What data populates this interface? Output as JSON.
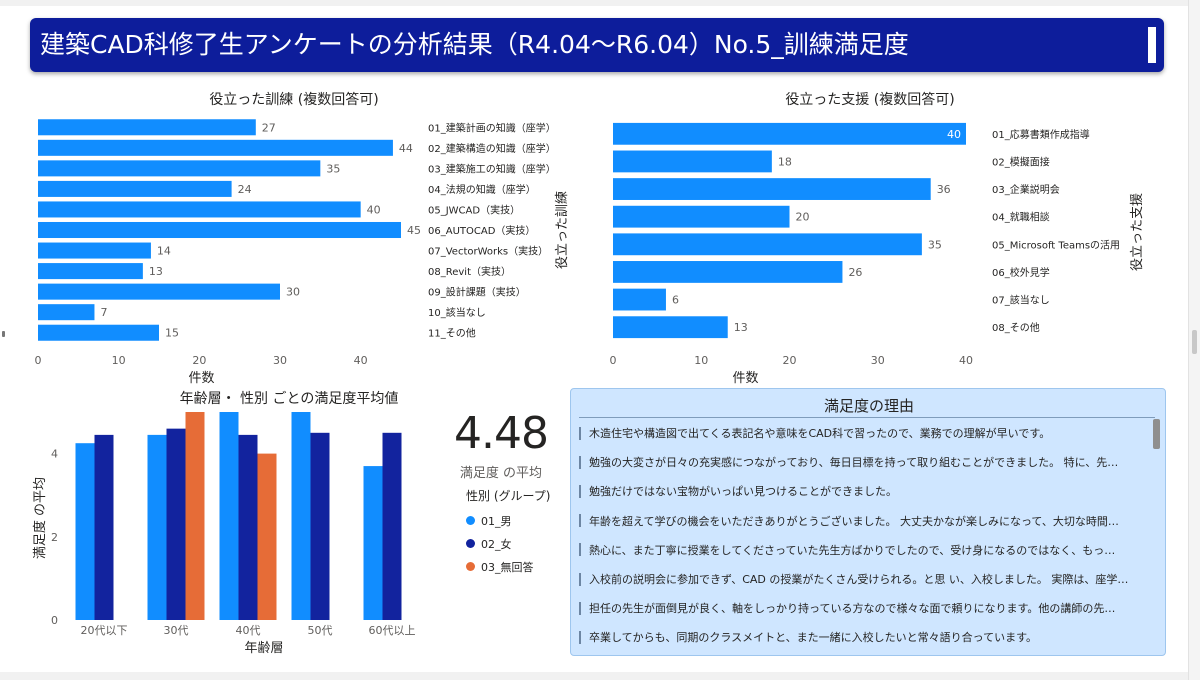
{
  "header": {
    "title": "建築CAD科修了生アンケートの分析結果（R4.04〜R6.04）No.5_訓練満足度"
  },
  "colors": {
    "header_bg": "#0d1d9b",
    "bar": "#118dff",
    "male": "#118dff",
    "female": "#12239e",
    "no_answer": "#e66c37",
    "panel_bg": "#cfe6ff"
  },
  "chart_data": [
    {
      "type": "bar",
      "orientation": "horizontal",
      "title": "役立った訓練 (複数回答可)",
      "xlabel": "件数",
      "ylabel": "役立った訓練",
      "xlim": [
        0,
        45
      ],
      "xticks": [
        0,
        10,
        20,
        30,
        40
      ],
      "grid": false,
      "categories": [
        "01_建築計画の知識（座学）",
        "02_建築構造の知識（座学）",
        "03_建築施工の知識（座学）",
        "04_法規の知識（座学）",
        "05_JWCAD（実技）",
        "06_AUTOCAD（実技）",
        "07_VectorWorks（実技）",
        "08_Revit（実技）",
        "09_設計課題（実技）",
        "10_該当なし",
        "11_その他"
      ],
      "values": [
        27,
        44,
        35,
        24,
        40,
        45,
        14,
        13,
        30,
        7,
        15
      ]
    },
    {
      "type": "bar",
      "orientation": "horizontal",
      "title": "役立った支援 (複数回答可)",
      "xlabel": "件数",
      "ylabel": "役立った支援",
      "xlim": [
        0,
        40
      ],
      "xticks": [
        0,
        10,
        20,
        30,
        40
      ],
      "grid": false,
      "categories": [
        "01_応募書類作成指導",
        "02_模擬面接",
        "03_企業説明会",
        "04_就職相談",
        "05_Microsoft Teamsの活用",
        "06_校外見学",
        "07_該当なし",
        "08_その他"
      ],
      "values": [
        40,
        18,
        36,
        20,
        35,
        26,
        6,
        13
      ]
    },
    {
      "type": "bar",
      "orientation": "vertical",
      "title": "年齢層・ 性別 ごとの満足度平均値",
      "xlabel": "年齢層",
      "ylabel": "満足度 の平均",
      "ylim": [
        0,
        5
      ],
      "yticks": [
        0,
        2,
        4
      ],
      "grid": false,
      "categories": [
        "20代以下",
        "30代",
        "40代",
        "50代",
        "60代以上"
      ],
      "legend_title": "性別 (グループ)",
      "legend_position": "right",
      "series": [
        {
          "name": "01_男",
          "color": "#118dff",
          "values": [
            4.25,
            4.45,
            5.0,
            5.0,
            3.7
          ]
        },
        {
          "name": "02_女",
          "color": "#12239e",
          "values": [
            4.45,
            4.6,
            4.45,
            4.5,
            4.5
          ]
        },
        {
          "name": "03_無回答",
          "color": "#e66c37",
          "values": [
            null,
            5.0,
            4.0,
            null,
            null
          ]
        }
      ]
    }
  ],
  "kpi": {
    "value": "4.48",
    "label": "満足度 の平均"
  },
  "reasons": {
    "title": "満足度の理由",
    "items": [
      "木造住宅や構造図で出てくる表記名や意味をCAD科で習ったので、業務での理解が早いです。",
      "勉強の大変さが日々の充実感につながっており、毎日目標を持って取り組むことができました。 特に、先…",
      "勉強だけではない宝物がいっぱい見つけることができました。",
      "年齢を超えて学びの機会をいただきありがとうございました。 大丈夫かなが楽しみになって、大切な時間…",
      "熱心に、また丁寧に授業をしてくださっていた先生方ばかりでしたので、受け身になるのではなく、もっ…",
      "入校前の説明会に参加できず、CAD の授業がたくさん受けられる。と思 い、入校しました。 実際は、座学…",
      "担任の先生が面倒見が良く、軸をしっかり持っている方なので様々な面で頼りになります。他の講師の先…",
      "卒業してからも、同期のクラスメイトと、また一緒に入校したいと常々語り合っています。"
    ]
  }
}
